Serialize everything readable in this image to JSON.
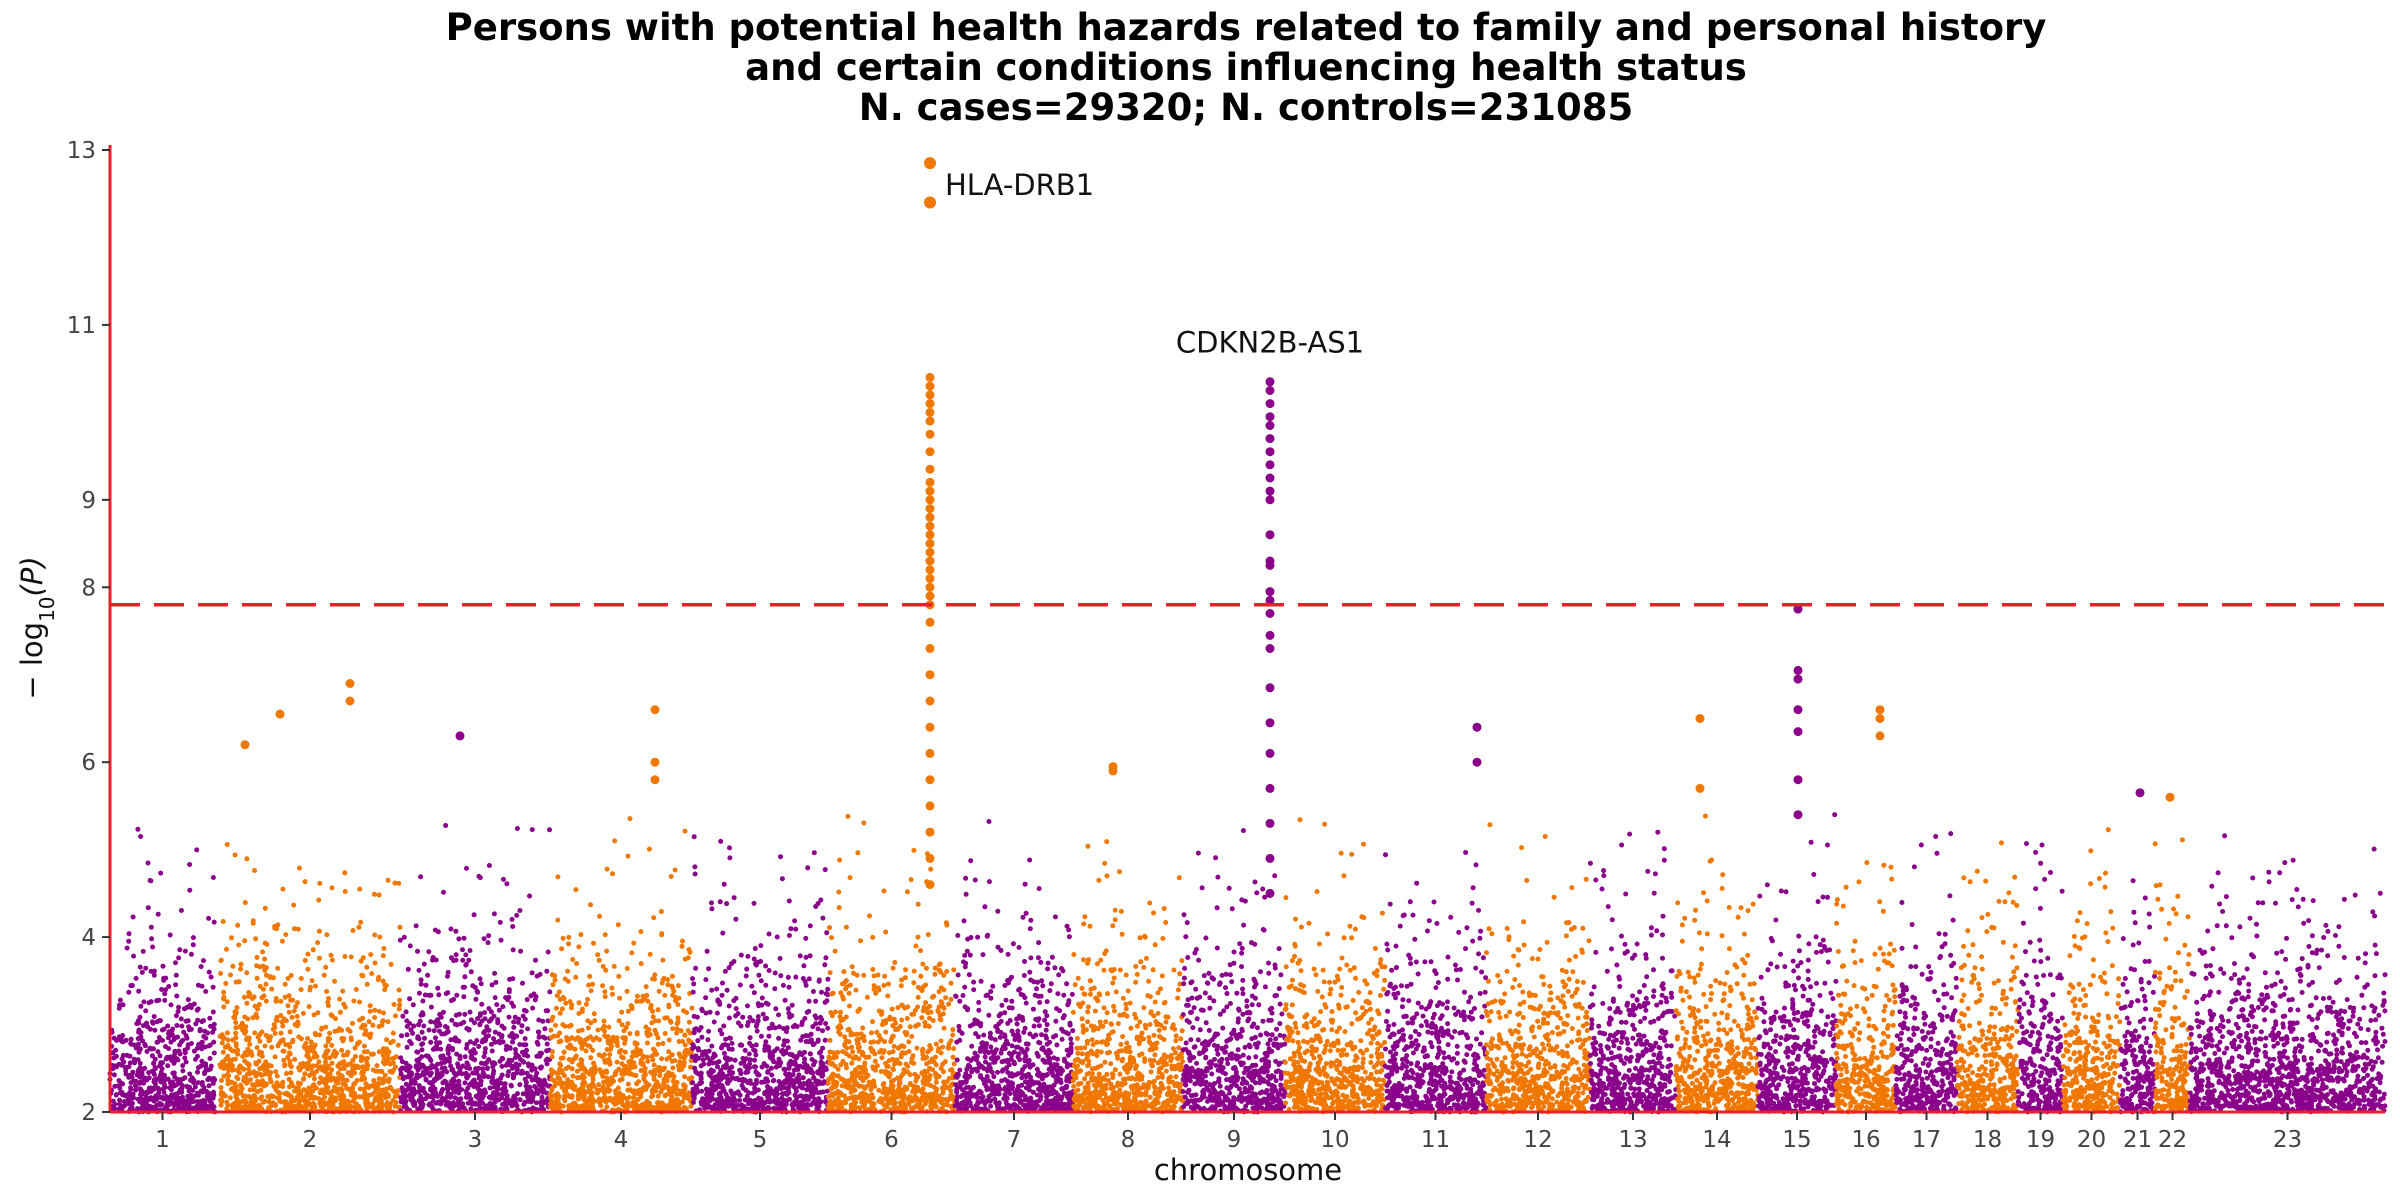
{
  "chart_data": {
    "type": "scatter",
    "title": [
      "Persons with potential health hazards related to family and personal history",
      "and certain conditions influencing health status",
      "N. cases=29320; N. controls=231085"
    ],
    "xlabel": "chromosome",
    "ylabel": "-log10(P)",
    "ylim": [
      2,
      13
    ],
    "y_ticks": [
      2,
      4,
      6,
      8,
      9,
      11,
      13
    ],
    "threshold": 7.8,
    "colors": {
      "odd": "#8b008b",
      "even": "#f07800",
      "threshold": "#e8202a",
      "axis": "#e8202a"
    },
    "chromosomes": [
      {
        "label": "1",
        "start": 0,
        "end": 105
      },
      {
        "label": "2",
        "start": 110,
        "end": 290
      },
      {
        "label": "3",
        "start": 290,
        "end": 440
      },
      {
        "label": "4",
        "start": 440,
        "end": 582
      },
      {
        "label": "5",
        "start": 582,
        "end": 718
      },
      {
        "label": "6",
        "start": 718,
        "end": 845
      },
      {
        "label": "7",
        "start": 845,
        "end": 963
      },
      {
        "label": "8",
        "start": 963,
        "end": 1073
      },
      {
        "label": "9",
        "start": 1073,
        "end": 1175
      },
      {
        "label": "10",
        "start": 1175,
        "end": 1275
      },
      {
        "label": "11",
        "start": 1275,
        "end": 1376
      },
      {
        "label": "12",
        "start": 1376,
        "end": 1480
      },
      {
        "label": "13",
        "start": 1480,
        "end": 1566
      },
      {
        "label": "14",
        "start": 1566,
        "end": 1648
      },
      {
        "label": "15",
        "start": 1648,
        "end": 1726
      },
      {
        "label": "16",
        "start": 1726,
        "end": 1786
      },
      {
        "label": "17",
        "start": 1786,
        "end": 1847
      },
      {
        "label": "18",
        "start": 1847,
        "end": 1908
      },
      {
        "label": "19",
        "start": 1908,
        "end": 1953
      },
      {
        "label": "20",
        "start": 1953,
        "end": 2010
      },
      {
        "label": "21",
        "start": 2010,
        "end": 2045
      },
      {
        "label": "22",
        "start": 2045,
        "end": 2080
      },
      {
        "label": "23",
        "start": 2080,
        "end": 2275
      }
    ],
    "highlight_points": [
      {
        "x": 820,
        "y": 12.85
      },
      {
        "x": 820,
        "y": 12.4
      },
      {
        "x": 820,
        "y": 10.4
      },
      {
        "x": 820,
        "y": 10.3
      },
      {
        "x": 820,
        "y": 10.2
      },
      {
        "x": 820,
        "y": 10.1
      },
      {
        "x": 820,
        "y": 10.0
      },
      {
        "x": 820,
        "y": 9.9
      },
      {
        "x": 820,
        "y": 9.75
      },
      {
        "x": 820,
        "y": 9.55
      },
      {
        "x": 820,
        "y": 9.35
      },
      {
        "x": 820,
        "y": 9.2
      },
      {
        "x": 820,
        "y": 9.1
      },
      {
        "x": 820,
        "y": 9.0
      },
      {
        "x": 820,
        "y": 8.9
      },
      {
        "x": 820,
        "y": 8.8
      },
      {
        "x": 820,
        "y": 8.7
      },
      {
        "x": 820,
        "y": 8.6
      },
      {
        "x": 820,
        "y": 8.5
      },
      {
        "x": 820,
        "y": 8.4
      },
      {
        "x": 820,
        "y": 8.3
      },
      {
        "x": 820,
        "y": 8.2
      },
      {
        "x": 820,
        "y": 8.1
      },
      {
        "x": 820,
        "y": 8.0
      },
      {
        "x": 820,
        "y": 7.9
      },
      {
        "x": 820,
        "y": 7.8
      },
      {
        "x": 820,
        "y": 7.6
      },
      {
        "x": 820,
        "y": 7.3
      },
      {
        "x": 820,
        "y": 7.0
      },
      {
        "x": 820,
        "y": 6.7
      },
      {
        "x": 820,
        "y": 6.4
      },
      {
        "x": 820,
        "y": 6.1
      },
      {
        "x": 820,
        "y": 5.8
      },
      {
        "x": 820,
        "y": 5.5
      },
      {
        "x": 820,
        "y": 5.2
      },
      {
        "x": 820,
        "y": 4.9
      },
      {
        "x": 820,
        "y": 4.6
      },
      {
        "x": 1160,
        "y": 10.35
      },
      {
        "x": 1160,
        "y": 10.25
      },
      {
        "x": 1160,
        "y": 10.1
      },
      {
        "x": 1160,
        "y": 9.95
      },
      {
        "x": 1160,
        "y": 9.85
      },
      {
        "x": 1160,
        "y": 9.7
      },
      {
        "x": 1160,
        "y": 9.55
      },
      {
        "x": 1160,
        "y": 9.4
      },
      {
        "x": 1160,
        "y": 9.25
      },
      {
        "x": 1160,
        "y": 9.1
      },
      {
        "x": 1160,
        "y": 9.0
      },
      {
        "x": 1160,
        "y": 8.6
      },
      {
        "x": 1160,
        "y": 8.3
      },
      {
        "x": 1160,
        "y": 8.25
      },
      {
        "x": 1160,
        "y": 7.95
      },
      {
        "x": 1160,
        "y": 7.85
      },
      {
        "x": 1160,
        "y": 7.7
      },
      {
        "x": 1160,
        "y": 7.45
      },
      {
        "x": 1160,
        "y": 7.3
      },
      {
        "x": 1160,
        "y": 6.85
      },
      {
        "x": 1160,
        "y": 6.45
      },
      {
        "x": 1160,
        "y": 6.1
      },
      {
        "x": 1160,
        "y": 5.7
      },
      {
        "x": 1160,
        "y": 5.3
      },
      {
        "x": 1160,
        "y": 4.9
      },
      {
        "x": 1160,
        "y": 4.5
      },
      {
        "x": 1688,
        "y": 7.75
      },
      {
        "x": 1688,
        "y": 7.05
      },
      {
        "x": 1688,
        "y": 6.95
      },
      {
        "x": 1688,
        "y": 6.6
      },
      {
        "x": 1688,
        "y": 6.35
      },
      {
        "x": 1688,
        "y": 5.8
      },
      {
        "x": 1688,
        "y": 5.4
      },
      {
        "x": 1770,
        "y": 6.6
      },
      {
        "x": 1770,
        "y": 6.5
      },
      {
        "x": 1770,
        "y": 6.3
      },
      {
        "x": 135,
        "y": 6.2
      },
      {
        "x": 170,
        "y": 6.55
      },
      {
        "x": 240,
        "y": 6.9
      },
      {
        "x": 240,
        "y": 6.7
      },
      {
        "x": 350,
        "y": 6.3
      },
      {
        "x": 545,
        "y": 6.6
      },
      {
        "x": 545,
        "y": 6.0
      },
      {
        "x": 545,
        "y": 5.8
      },
      {
        "x": 1003,
        "y": 5.95
      },
      {
        "x": 1003,
        "y": 5.9
      },
      {
        "x": 1367,
        "y": 6.4
      },
      {
        "x": 1367,
        "y": 6.0
      },
      {
        "x": 1590,
        "y": 6.5
      },
      {
        "x": 1590,
        "y": 5.7
      },
      {
        "x": 2030,
        "y": 5.65
      },
      {
        "x": 2060,
        "y": 5.6
      }
    ],
    "annotations": [
      {
        "label": "HLA-DRB1",
        "x": 820,
        "y": 12.6
      },
      {
        "label": "CDKN2B-AS1",
        "x": 1160,
        "y": 10.8
      }
    ]
  }
}
